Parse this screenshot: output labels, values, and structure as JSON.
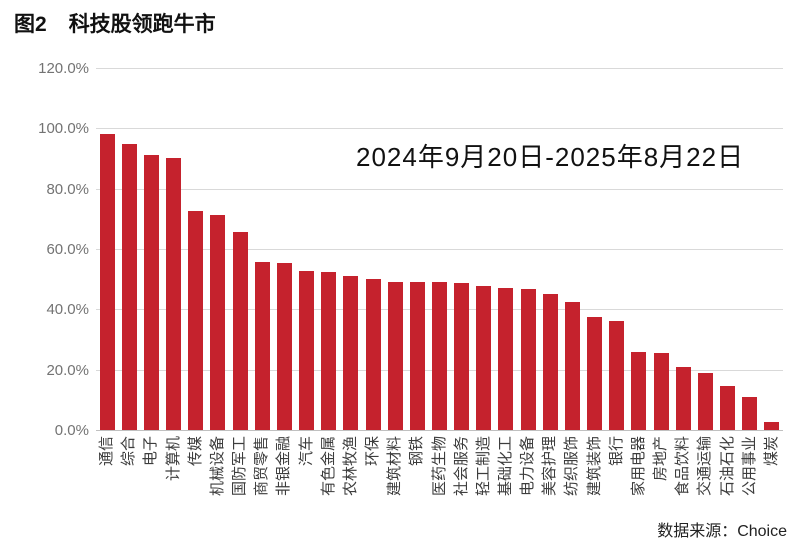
{
  "figure": {
    "title_prefix": "图2",
    "title": "科技股领跑牛市",
    "annotation": "2024年9月20日-2025年8月22日",
    "source": "数据来源：Choice"
  },
  "chart_data": {
    "type": "bar",
    "title": "科技股领跑牛市",
    "annotation": "2024年9月20日-2025年8月22日",
    "unit": "%",
    "ylabel": "",
    "xlabel": "",
    "ylim": [
      0,
      120
    ],
    "grid": true,
    "legend": "none",
    "bar_color": "#c5222d",
    "yticks": [
      {
        "label": "120.0%",
        "value": 120
      },
      {
        "label": "100.0%",
        "value": 100
      },
      {
        "label": "80.0%",
        "value": 80
      },
      {
        "label": "60.0%",
        "value": 60
      },
      {
        "label": "40.0%",
        "value": 40
      },
      {
        "label": "20.0%",
        "value": 20
      },
      {
        "label": "0.0%",
        "value": 0
      }
    ],
    "categories": [
      "通信",
      "综合",
      "电子",
      "计算机",
      "传媒",
      "机械设备",
      "国防军工",
      "商贸零售",
      "非银金融",
      "汽车",
      "有色金属",
      "农林牧渔",
      "环保",
      "建筑材料",
      "钢铁",
      "医药生物",
      "社会服务",
      "轻工制造",
      "基础化工",
      "电力设备",
      "美容护理",
      "纺织服饰",
      "建筑装饰",
      "银行",
      "家用电器",
      "房地产",
      "食品饮料",
      "交通运输",
      "石油石化",
      "公用事业",
      "煤炭"
    ],
    "values": [
      98.0,
      94.9,
      91.3,
      90.2,
      72.7,
      71.2,
      65.5,
      55.8,
      55.4,
      52.6,
      52.3,
      51.1,
      50.2,
      49.2,
      49.1,
      49.0,
      48.7,
      47.8,
      47.1,
      46.6,
      45.0,
      42.5,
      37.5,
      36.0,
      25.8,
      25.4,
      21.0,
      19.0,
      14.5,
      11.1,
      2.7
    ]
  }
}
